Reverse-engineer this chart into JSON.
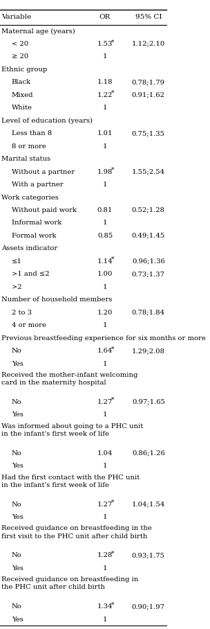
{
  "title_row": [
    "Variable",
    "OR",
    "95% CI"
  ],
  "rows": [
    {
      "text": "Maternal age (years)",
      "indent": 0,
      "or": "",
      "ci": "",
      "bold": false
    },
    {
      "text": "< 20",
      "indent": 1,
      "or": "1.53*",
      "ci": "1.12;2.10",
      "bold": false
    },
    {
      "text": "≥ 20",
      "indent": 1,
      "or": "1",
      "ci": "",
      "bold": false
    },
    {
      "text": "Ethnic group",
      "indent": 0,
      "or": "",
      "ci": "",
      "bold": false
    },
    {
      "text": "Black",
      "indent": 1,
      "or": "1.18",
      "ci": "0.78;1.79",
      "bold": false
    },
    {
      "text": "Mixed",
      "indent": 1,
      "or": "1.22*",
      "ci": "0.91;1.62",
      "bold": false
    },
    {
      "text": "White",
      "indent": 1,
      "or": "1",
      "ci": "",
      "bold": false
    },
    {
      "text": "Level of education (years)",
      "indent": 0,
      "or": "",
      "ci": "",
      "bold": false
    },
    {
      "text": "Less than 8",
      "indent": 1,
      "or": "1.01",
      "ci": "0.75;1.35",
      "bold": false
    },
    {
      "text": "8 or more",
      "indent": 1,
      "or": "1",
      "ci": "",
      "bold": false
    },
    {
      "text": "Marital status",
      "indent": 0,
      "or": "",
      "ci": "",
      "bold": false
    },
    {
      "text": "Without a partner",
      "indent": 1,
      "or": "1.98*",
      "ci": "1.55;2.54",
      "bold": false
    },
    {
      "text": "With a partner",
      "indent": 1,
      "or": "1",
      "ci": "",
      "bold": false
    },
    {
      "text": "Work categories",
      "indent": 0,
      "or": "",
      "ci": "",
      "bold": false
    },
    {
      "text": "Without paid work",
      "indent": 1,
      "or": "0.81",
      "ci": "0.52;1.28",
      "bold": false
    },
    {
      "text": "Informal work",
      "indent": 1,
      "or": "1",
      "ci": "",
      "bold": false
    },
    {
      "text": "Formal work",
      "indent": 1,
      "or": "0.85",
      "ci": "0.49;1.45",
      "bold": false
    },
    {
      "text": "Assets indicator",
      "indent": 0,
      "or": "",
      "ci": "",
      "bold": false
    },
    {
      "text": "≤1",
      "indent": 1,
      "or": "1.14*",
      "ci": "0.96;1.36",
      "bold": false
    },
    {
      "text": ">1 and ≤2",
      "indent": 1,
      "or": "1.00",
      "ci": "0.73;1.37",
      "bold": false
    },
    {
      "text": ">2",
      "indent": 1,
      "or": "1",
      "ci": "",
      "bold": false
    },
    {
      "text": "Number of household members",
      "indent": 0,
      "or": "",
      "ci": "",
      "bold": false
    },
    {
      "text": "2 to 3",
      "indent": 1,
      "or": "1.20",
      "ci": "0.78;1.84",
      "bold": false
    },
    {
      "text": "4 or more",
      "indent": 1,
      "or": "1",
      "ci": "",
      "bold": false
    },
    {
      "text": "Previous breastfeeding experience for six months or more",
      "indent": 0,
      "or": "",
      "ci": "",
      "bold": false
    },
    {
      "text": "No",
      "indent": 1,
      "or": "1.64*",
      "ci": "1.29;2.08",
      "bold": false
    },
    {
      "text": "Yes",
      "indent": 1,
      "or": "1",
      "ci": "",
      "bold": false
    },
    {
      "text": "Received the mother-infant welcoming\ncard in the maternity hospital",
      "indent": 0,
      "or": "",
      "ci": "",
      "bold": false
    },
    {
      "text": "No",
      "indent": 1,
      "or": "1.27*",
      "ci": "0.97;1.65",
      "bold": false
    },
    {
      "text": "Yes",
      "indent": 1,
      "or": "1",
      "ci": "",
      "bold": false
    },
    {
      "text": "Was informed about going to a PHC unit\nin the infant's first week of life",
      "indent": 0,
      "or": "",
      "ci": "",
      "bold": false
    },
    {
      "text": "No",
      "indent": 1,
      "or": "1.04",
      "ci": "0.86;1.26",
      "bold": false
    },
    {
      "text": "Yes",
      "indent": 1,
      "or": "1",
      "ci": "",
      "bold": false
    },
    {
      "text": "Had the first contact with the PHC unit\nin the infant's first week of life",
      "indent": 0,
      "or": "",
      "ci": "",
      "bold": false
    },
    {
      "text": "No",
      "indent": 1,
      "or": "1.27*",
      "ci": "1.04;1.54",
      "bold": false
    },
    {
      "text": "Yes",
      "indent": 1,
      "or": "1",
      "ci": "",
      "bold": false
    },
    {
      "text": "Received guidance on breastfeeding in the\nfirst visit to the PHC unit after child birth",
      "indent": 0,
      "or": "",
      "ci": "",
      "bold": false
    },
    {
      "text": "No",
      "indent": 1,
      "or": "1.28*",
      "ci": "0.93;1.75",
      "bold": false
    },
    {
      "text": "Yes",
      "indent": 1,
      "or": "1",
      "ci": "",
      "bold": false
    },
    {
      "text": "Received guidance on breastfeeding in\nthe PHC unit after child birth",
      "indent": 0,
      "or": "",
      "ci": "",
      "bold": false
    },
    {
      "text": "No",
      "indent": 1,
      "or": "1.34*",
      "ci": "0.90;1.97",
      "bold": false
    },
    {
      "text": "Yes",
      "indent": 1,
      "or": "1",
      "ci": "",
      "bold": false
    }
  ],
  "col_x": {
    "variable": 0.01,
    "or": 0.63,
    "ci": 0.8
  },
  "font_size": 7.2,
  "header_font_size": 7.5,
  "bg_color": "#ffffff",
  "text_color": "#000000",
  "line_color": "#000000",
  "indent_size": 0.06
}
